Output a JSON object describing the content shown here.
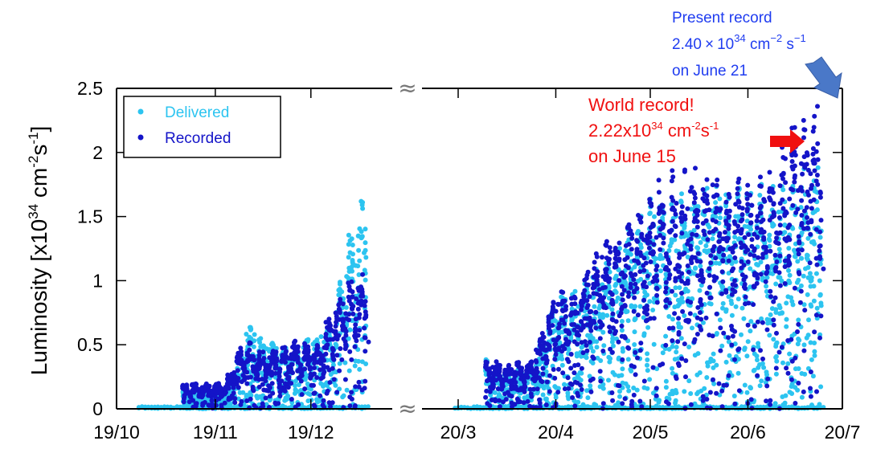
{
  "colors": {
    "delivered": "#2cc4f0",
    "recorded": "#1414c8",
    "annotation_blue": "#1f3cf0",
    "annotation_red": "#f01010",
    "arrow_blue": "#4a78c8"
  },
  "chart_data": {
    "type": "scatter",
    "title": "",
    "xlabel": "",
    "ylabel": "Luminosity [x10",
    "ylabel_exp": "34",
    "ylabel_unit": " cm",
    "ylabel_unit_exp": "-2",
    "ylabel_s": "s",
    "ylabel_s_exp": "-1",
    "ylabel_close": "]",
    "ylim": [
      0,
      2.5
    ],
    "y_ticks": [
      "0",
      "0.5",
      "1",
      "1.5",
      "2",
      "2.5"
    ],
    "y_tick_values": [
      0,
      0.5,
      1,
      1.5,
      2,
      2.5
    ],
    "x_axis_broken": true,
    "x_segments": [
      {
        "ticks": [
          "19/10",
          "19/11",
          "19/12"
        ],
        "range": [
          "2019-10-01",
          "2019-12-22"
        ],
        "data_range": [
          "2019-10-22",
          "2019-12-19"
        ]
      },
      {
        "ticks": [
          "20/3",
          "20/4",
          "20/5",
          "20/6",
          "20/7"
        ],
        "range": [
          "2020-03-01",
          "2020-07-01"
        ],
        "data_range": [
          "2020-03-10",
          "2020-06-25"
        ]
      }
    ],
    "grid": false,
    "legend_position": "top-left",
    "series": [
      {
        "name": "Delivered",
        "envelope": [
          [
            "2019-11-05",
            0.15
          ],
          [
            "2019-11-12",
            0.66
          ],
          [
            "2019-11-18",
            0.55
          ],
          [
            "2019-11-26",
            0.48
          ],
          [
            "2019-12-02",
            0.6
          ],
          [
            "2019-12-08",
            0.65
          ],
          [
            "2019-12-12",
            1.2
          ],
          [
            "2019-12-16",
            1.55
          ],
          [
            "2019-12-19",
            1.76
          ],
          [
            "2020-03-17",
            0.28
          ],
          [
            "2020-03-25",
            0.35
          ],
          [
            "2020-04-01",
            0.85
          ],
          [
            "2020-04-10",
            1.0
          ],
          [
            "2020-04-20",
            1.25
          ],
          [
            "2020-05-01",
            1.65
          ],
          [
            "2020-05-10",
            1.7
          ],
          [
            "2020-05-20",
            1.75
          ],
          [
            "2020-06-01",
            1.8
          ],
          [
            "2020-06-10",
            1.75
          ],
          [
            "2020-06-20",
            1.9
          ],
          [
            "2020-06-25",
            1.93
          ]
        ]
      },
      {
        "name": "Recorded",
        "envelope": [
          [
            "2019-11-05",
            0.2
          ],
          [
            "2019-11-08",
            0.45
          ],
          [
            "2019-11-12",
            0.55
          ],
          [
            "2019-11-16",
            0.45
          ],
          [
            "2019-11-22",
            0.5
          ],
          [
            "2019-11-28",
            0.55
          ],
          [
            "2019-12-04",
            0.5
          ],
          [
            "2019-12-09",
            0.85
          ],
          [
            "2019-12-13",
            1.02
          ],
          [
            "2019-12-16",
            1.1
          ],
          [
            "2019-12-19",
            1.0
          ],
          [
            "2020-03-17",
            0.35
          ],
          [
            "2020-03-25",
            0.4
          ],
          [
            "2020-04-01",
            0.9
          ],
          [
            "2020-04-08",
            1.0
          ],
          [
            "2020-04-15",
            1.3
          ],
          [
            "2020-04-25",
            1.5
          ],
          [
            "2020-05-05",
            1.85
          ],
          [
            "2020-05-15",
            1.9
          ],
          [
            "2020-05-25",
            1.85
          ],
          [
            "2020-06-05",
            1.82
          ],
          [
            "2020-06-15",
            2.22
          ],
          [
            "2020-06-21",
            2.4
          ],
          [
            "2020-06-25",
            2.38
          ]
        ]
      }
    ],
    "annotations": [
      {
        "text_line1": "Present record",
        "value": "2.40",
        "times": "×",
        "base": "10",
        "exp": "34",
        "unit1": " cm",
        "unit1_exp": "−2",
        "unit2": " s",
        "unit2_exp": "−1",
        "text_line3": "on June 21",
        "color": "#1f3cf0"
      },
      {
        "text_line1": "World record!",
        "value": "2.22x10",
        "exp": "34",
        "unit1": " cm",
        "unit1_exp": "-2",
        "unit2": "s",
        "unit2_exp": "-1",
        "text_line3": "on June 15",
        "color": "#f01010"
      }
    ],
    "break_marker": "≈"
  }
}
